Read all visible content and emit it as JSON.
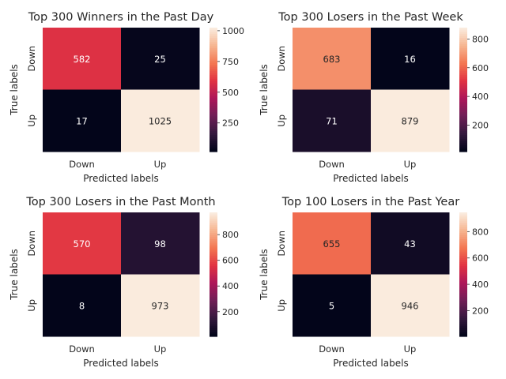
{
  "chart_data": [
    {
      "type": "heatmap",
      "title": "Top 300 Winners in the Past Day",
      "xlabel": "Predicted labels",
      "ylabel": "True labels",
      "x_categories": [
        "Down",
        "Up"
      ],
      "y_categories": [
        "Down",
        "Up"
      ],
      "values": [
        [
          582,
          25
        ],
        [
          17,
          1025
        ]
      ],
      "colorbar": {
        "ticks": [
          250,
          500,
          750,
          1000
        ],
        "range": [
          17,
          1025
        ]
      }
    },
    {
      "type": "heatmap",
      "title": "Top 300 Losers in the Past Week",
      "xlabel": "Predicted labels",
      "ylabel": "True labels",
      "x_categories": [
        "Down",
        "Up"
      ],
      "y_categories": [
        "Down",
        "Up"
      ],
      "values": [
        [
          683,
          16
        ],
        [
          71,
          879
        ]
      ],
      "colorbar": {
        "ticks": [
          200,
          400,
          600,
          800
        ],
        "range": [
          16,
          879
        ]
      }
    },
    {
      "type": "heatmap",
      "title": "Top 300 Losers in the Past Month",
      "xlabel": "Predicted labels",
      "ylabel": "True labels",
      "x_categories": [
        "Down",
        "Up"
      ],
      "y_categories": [
        "Down",
        "Up"
      ],
      "values": [
        [
          570,
          98
        ],
        [
          8,
          973
        ]
      ],
      "colorbar": {
        "ticks": [
          200,
          400,
          600,
          800
        ],
        "range": [
          8,
          973
        ]
      }
    },
    {
      "type": "heatmap",
      "title": "Top 100 Losers in the Past Year",
      "xlabel": "Predicted labels",
      "ylabel": "True labels",
      "x_categories": [
        "Down",
        "Up"
      ],
      "y_categories": [
        "Down",
        "Up"
      ],
      "values": [
        [
          655,
          43
        ],
        [
          5,
          946
        ]
      ],
      "colorbar": {
        "ticks": [
          200,
          400,
          600,
          800
        ],
        "range": [
          5,
          946
        ]
      }
    }
  ],
  "colormap": [
    "#03051a",
    "#36193e",
    "#701f57",
    "#ad1759",
    "#e13342",
    "#f37651",
    "#f6b48f",
    "#faebdd"
  ]
}
